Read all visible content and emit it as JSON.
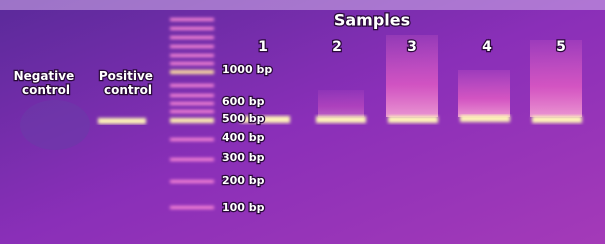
{
  "header": {
    "title": "Samples"
  },
  "lanes": [
    "1",
    "2",
    "3",
    "4",
    "5"
  ],
  "controls": {
    "negative": "Negative control",
    "positive": "Positive control"
  },
  "ladder": [
    "1000 bp",
    "600 bp",
    "500 bp",
    "400 bp",
    "300 bp",
    "200 bp",
    "100 bp"
  ]
}
